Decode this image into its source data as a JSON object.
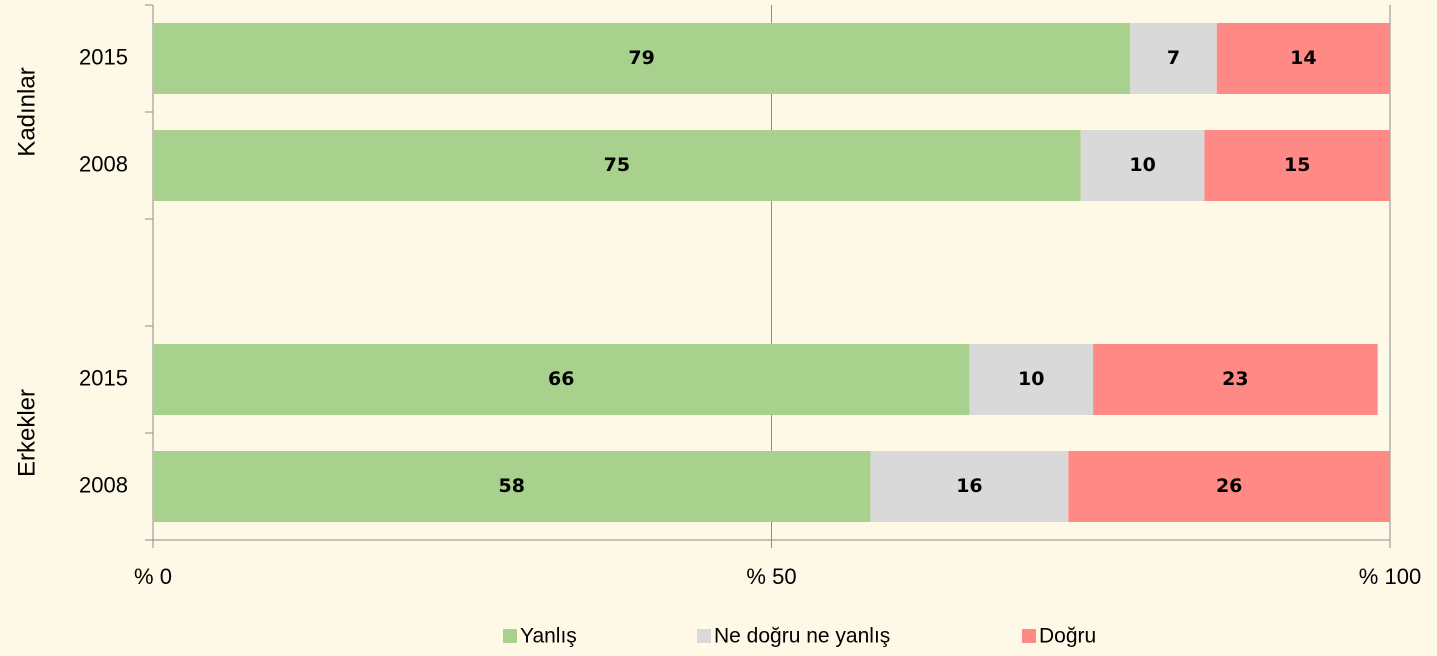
{
  "chart_data": {
    "type": "stacked-bar-horizontal",
    "groups": [
      "Kadınlar",
      "Erkekler"
    ],
    "categories": [
      "2015",
      "2008",
      null,
      "2015",
      "2008"
    ],
    "series": [
      {
        "name": "Yanlış",
        "color": "#a9d18e",
        "values": [
          79,
          75,
          null,
          66,
          58
        ]
      },
      {
        "name": "Ne doğru ne yanlış",
        "color": "#d9d9d9",
        "values": [
          7,
          10,
          null,
          10,
          16
        ]
      },
      {
        "name": "Doğru",
        "color": "#ff8a85",
        "values": [
          14,
          15,
          null,
          23,
          26
        ]
      }
    ],
    "xlim": [
      0,
      100
    ],
    "xticks": [
      {
        "value": 0,
        "label": "% 0"
      },
      {
        "value": 50,
        "label": "% 50"
      },
      {
        "value": 100,
        "label": "% 100"
      }
    ],
    "grid": true,
    "legend": "bottom"
  }
}
